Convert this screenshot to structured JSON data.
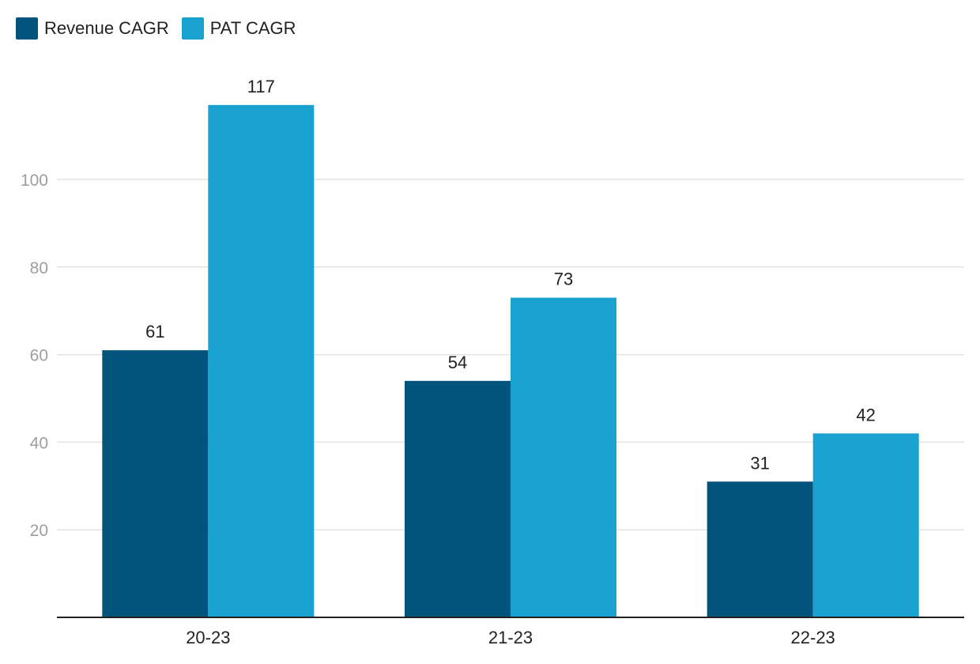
{
  "chart_data": {
    "type": "bar",
    "categories": [
      "20-23",
      "21-23",
      "22-23"
    ],
    "series": [
      {
        "name": "Revenue CAGR",
        "color": "#03547c",
        "values": [
          61,
          54,
          31
        ]
      },
      {
        "name": "PAT CAGR",
        "color": "#19a1cf",
        "values": [
          117,
          73,
          42
        ]
      }
    ],
    "y_ticks": [
      20,
      40,
      60,
      80,
      100
    ],
    "ylim": [
      0,
      120
    ],
    "grid": true,
    "legend_position": "top-left"
  }
}
